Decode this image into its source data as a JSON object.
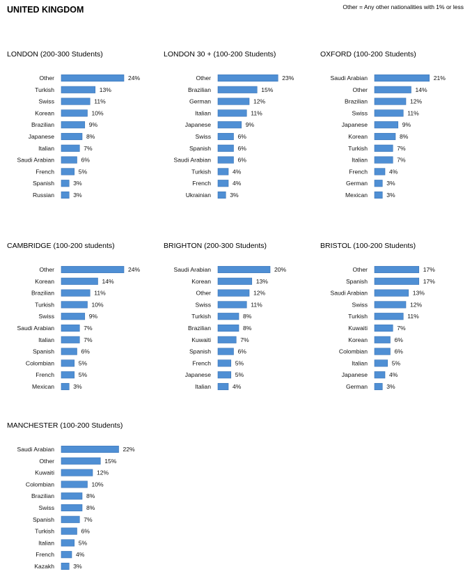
{
  "header": {
    "title": "UNITED KINGDOM",
    "note": "Other = Any other nationalities with 1% or less"
  },
  "colors": {
    "bar": "#4f8fd4",
    "bar_edge": "#3a74b6"
  },
  "chart_data": [
    {
      "type": "bar",
      "orientation": "horizontal",
      "title": "LONDON (200-300 Students)",
      "categories": [
        "Other",
        "Turkish",
        "Swiss",
        "Korean",
        "Brazilian",
        "Japanese",
        "Italian",
        "Saudi Arabian",
        "French",
        "Spanish",
        "Russian"
      ],
      "values": [
        24,
        13,
        11,
        10,
        9,
        8,
        7,
        6,
        5,
        3,
        3
      ],
      "unit": "%",
      "xlim": [
        0,
        25
      ]
    },
    {
      "type": "bar",
      "orientation": "horizontal",
      "title": "LONDON 30 + (100-200 Students)",
      "categories": [
        "Other",
        "Brazilian",
        "German",
        "Italian",
        "Japanese",
        "Swiss",
        "Spanish",
        "Saudi Arabian",
        "Turkish",
        "French",
        "Ukrainian"
      ],
      "values": [
        23,
        15,
        12,
        11,
        9,
        6,
        6,
        6,
        4,
        4,
        3
      ],
      "unit": "%",
      "xlim": [
        0,
        25
      ]
    },
    {
      "type": "bar",
      "orientation": "horizontal",
      "title": "OXFORD (100-200 Students)",
      "categories": [
        "Saudi Arabian",
        "Other",
        "Brazilian",
        "Swiss",
        "Japanese",
        "Korean",
        "Turkish",
        "Italian",
        "French",
        "German",
        "Mexican"
      ],
      "values": [
        21,
        14,
        12,
        11,
        9,
        8,
        7,
        7,
        4,
        3,
        3
      ],
      "unit": "%",
      "xlim": [
        0,
        25
      ]
    },
    {
      "type": "bar",
      "orientation": "horizontal",
      "title": "CAMBRIDGE (100-200 students)",
      "categories": [
        "Other",
        "Korean",
        "Brazilian",
        "Turkish",
        "Swiss",
        "Saudi Arabian",
        "Italian",
        "Spanish",
        "Colombian",
        "French",
        "Mexican"
      ],
      "values": [
        24,
        14,
        11,
        10,
        9,
        7,
        7,
        6,
        5,
        5,
        3
      ],
      "unit": "%",
      "xlim": [
        0,
        25
      ]
    },
    {
      "type": "bar",
      "orientation": "horizontal",
      "title": "BRIGHTON (200-300 Students)",
      "categories": [
        "Saudi Arabian",
        "Korean",
        "Other",
        "Swiss",
        "Turkish",
        "Brazilian",
        "Kuwaiti",
        "Spanish",
        "French",
        "Japanese",
        "Italian"
      ],
      "values": [
        20,
        13,
        12,
        11,
        8,
        8,
        7,
        6,
        5,
        5,
        4
      ],
      "unit": "%",
      "xlim": [
        0,
        25
      ]
    },
    {
      "type": "bar",
      "orientation": "horizontal",
      "title": "BRISTOL  (100-200 Students)",
      "categories": [
        "Other",
        "Spanish",
        "Saudi Arabian",
        "Swiss",
        "Turkish",
        "Kuwaiti",
        "Korean",
        "Colombian",
        "Italian",
        "Japanese",
        "German"
      ],
      "values": [
        17,
        17,
        13,
        12,
        11,
        7,
        6,
        6,
        5,
        4,
        3
      ],
      "unit": "%",
      "xlim": [
        0,
        25
      ]
    },
    {
      "type": "bar",
      "orientation": "horizontal",
      "title": "MANCHESTER (100-200 Students)",
      "categories": [
        "Saudi Arabian",
        "Other",
        "Kuwaiti",
        "Colombian",
        "Brazilian",
        "Swiss",
        "Spanish",
        "Turkish",
        "Italian",
        "French",
        "Kazakh"
      ],
      "values": [
        22,
        15,
        12,
        10,
        8,
        8,
        7,
        6,
        5,
        4,
        3
      ],
      "unit": "%",
      "xlim": [
        0,
        25
      ]
    }
  ]
}
